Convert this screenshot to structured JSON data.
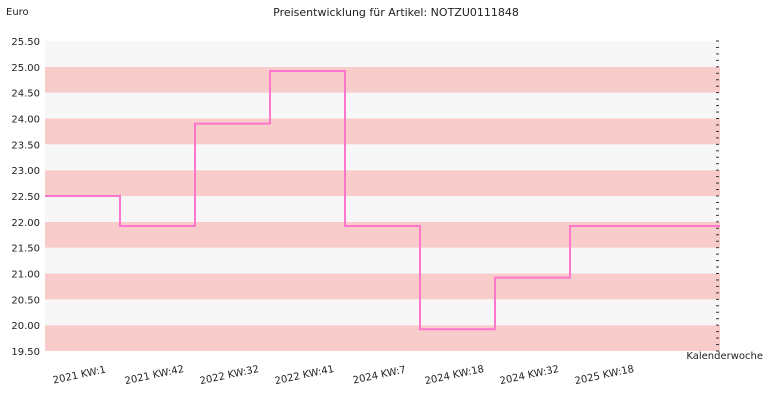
{
  "chart_data": {
    "type": "line",
    "step": true,
    "title": "Preisentwicklung für Artikel: NOTZU0111848",
    "ylabel": "Euro",
    "xlabel": "Kalenderwoche",
    "ylim": [
      19.5,
      25.5
    ],
    "ytick_step": 0.5,
    "yticks": [
      "19.50",
      "20.00",
      "20.50",
      "21.00",
      "21.50",
      "22.00",
      "22.50",
      "23.00",
      "23.50",
      "24.00",
      "24.50",
      "25.00",
      "25.50"
    ],
    "categories": [
      "2021 KW:1",
      "2021 KW:42",
      "2022 KW:32",
      "2022 KW:41",
      "2024 KW:7",
      "2024 KW:18",
      "2024 KW:32",
      "2025 KW:18"
    ],
    "series": [
      {
        "values": [
          22.5,
          21.92,
          23.9,
          24.92,
          21.92,
          19.92,
          20.92,
          21.92
        ]
      }
    ],
    "colors": {
      "line": "#ff77cc",
      "band_dark": "#f9cccc",
      "band_light": "#f7f7f7"
    },
    "grid": true,
    "legend": "none"
  }
}
